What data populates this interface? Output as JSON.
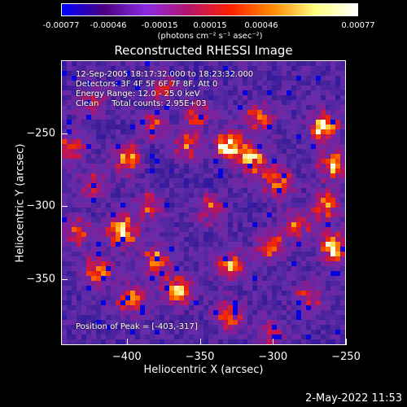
{
  "colorbar": {
    "ticks": [
      "-0.00077",
      "-0.00046",
      "-0.00015",
      "0.00015",
      "0.00046",
      "0.00077"
    ],
    "unit_label": "(photons cm⁻² s⁻¹ asec⁻²)",
    "colors": [
      "#0000ff",
      "#4b0082",
      "#8a2be2",
      "#b5146e",
      "#ff2000",
      "#ff8c00",
      "#ffff80",
      "#ffffff"
    ]
  },
  "chart_data": {
    "type": "heatmap",
    "title": "Reconstructed RHESSI Image",
    "xlabel": "Heliocentric X (arcsec)",
    "ylabel": "Heliocentric Y (arcsec)",
    "xlim": [
      -445,
      -250
    ],
    "ylim": [
      -395,
      -200
    ],
    "x_ticks": [
      "−400",
      "−350",
      "−300",
      "−250"
    ],
    "y_ticks": [
      "−250",
      "−300",
      "−350"
    ],
    "color_range": [
      -0.00077,
      0.00077
    ],
    "peak_position": [
      -403,
      -317
    ],
    "annotations": {
      "time_range": "12-Sep-2005 18:17:32.000 to 18:23:32.000",
      "detectors": "Detectors: 3F 4F 5F 6F 7F 8F, Att 0",
      "energy": "Energy Range: 12.0 - 25.0 keV",
      "clean": "Clean     Total counts: 2.95E+03",
      "peak": "Position of Peak = [-403,-317]"
    },
    "sources": [
      {
        "x": -403,
        "y": -317,
        "intensity": 1.0
      },
      {
        "x": -400,
        "y": -268,
        "intensity": 0.75
      },
      {
        "x": -382,
        "y": -245,
        "intensity": 0.6
      },
      {
        "x": -375,
        "y": -218,
        "intensity": 0.55
      },
      {
        "x": -358,
        "y": -258,
        "intensity": 0.7
      },
      {
        "x": -352,
        "y": -237,
        "intensity": 0.6
      },
      {
        "x": -330,
        "y": -258,
        "intensity": 0.9
      },
      {
        "x": -314,
        "y": -268,
        "intensity": 0.85
      },
      {
        "x": -310,
        "y": -240,
        "intensity": 0.65
      },
      {
        "x": -296,
        "y": -283,
        "intensity": 0.8
      },
      {
        "x": -265,
        "y": -246,
        "intensity": 0.9
      },
      {
        "x": -258,
        "y": -272,
        "intensity": 0.8
      },
      {
        "x": -263,
        "y": -300,
        "intensity": 0.7
      },
      {
        "x": -258,
        "y": -328,
        "intensity": 0.9
      },
      {
        "x": -283,
        "y": -312,
        "intensity": 0.6
      },
      {
        "x": -300,
        "y": -328,
        "intensity": 0.65
      },
      {
        "x": -329,
        "y": -340,
        "intensity": 0.8
      },
      {
        "x": -330,
        "y": -375,
        "intensity": 0.7
      },
      {
        "x": -365,
        "y": -358,
        "intensity": 0.85
      },
      {
        "x": -380,
        "y": -338,
        "intensity": 0.7
      },
      {
        "x": -397,
        "y": -365,
        "intensity": 0.7
      },
      {
        "x": -420,
        "y": -345,
        "intensity": 0.7
      },
      {
        "x": -435,
        "y": -318,
        "intensity": 0.55
      },
      {
        "x": -423,
        "y": -285,
        "intensity": 0.55
      },
      {
        "x": -438,
        "y": -260,
        "intensity": 0.6
      },
      {
        "x": -425,
        "y": -228,
        "intensity": 0.5
      },
      {
        "x": -342,
        "y": -302,
        "intensity": 0.55
      },
      {
        "x": -300,
        "y": -388,
        "intensity": 0.5
      },
      {
        "x": -275,
        "y": -363,
        "intensity": 0.55
      },
      {
        "x": -385,
        "y": -300,
        "intensity": 0.5
      }
    ]
  },
  "timestamp": "2-May-2022 11:53"
}
